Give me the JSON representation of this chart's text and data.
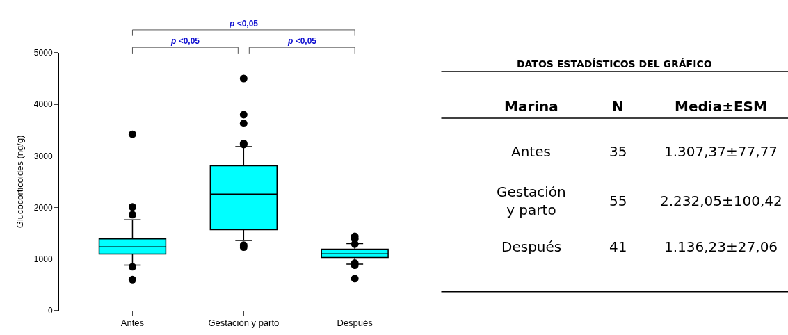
{
  "chart_data": [
    {
      "type": "box",
      "ylabel": "Glucocorticoides (ng/g)",
      "categories": [
        "Antes",
        "Gestación y parto",
        "Después"
      ],
      "color": "#00ffff",
      "ylim": [
        0,
        5000
      ],
      "yticks": [
        0,
        1000,
        2000,
        3000,
        4000,
        5000
      ],
      "boxes": [
        {
          "low": 880,
          "q1": 1095,
          "median": 1235,
          "q3": 1390,
          "high": 1760,
          "outliers": [
            3420,
            2010,
            1860,
            850,
            600
          ]
        },
        {
          "low": 1360,
          "q1": 1570,
          "median": 2260,
          "q3": 2810,
          "high": 3180,
          "outliers": [
            4500,
            3800,
            3630,
            3240,
            3220,
            1270,
            1230
          ]
        },
        {
          "low": 900,
          "q1": 1030,
          "median": 1100,
          "q3": 1190,
          "high": 1300,
          "outliers": [
            1440,
            1390,
            1290,
            920,
            880,
            620
          ]
        }
      ],
      "annotations": [
        "p <0,05",
        "p <0,05",
        "p <0,05"
      ]
    },
    {
      "type": "other",
      "title": "DATOS ESTADÍSTICOS DEL GRÁFICO",
      "annotations": [
        "Marina",
        "N",
        "Media±ESM",
        "Antes",
        "35",
        "1.307,37±77,77",
        "Gestación\ny parto",
        "55",
        "2.232,05±100,42",
        "Después",
        "41",
        "1.136,23±27,06"
      ]
    }
  ]
}
